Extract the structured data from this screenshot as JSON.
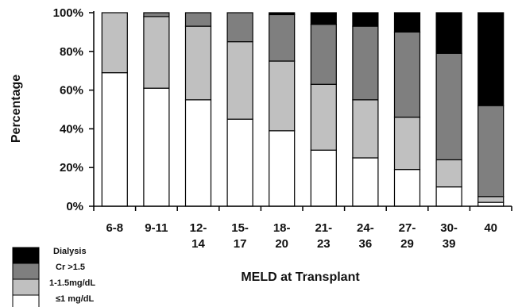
{
  "chart_data": {
    "type": "bar",
    "stacked": true,
    "percent": true,
    "categories": [
      [
        "6-8"
      ],
      [
        "9-11"
      ],
      [
        "12-",
        "14"
      ],
      [
        "15-",
        "17"
      ],
      [
        "18-",
        "20"
      ],
      [
        "21-",
        "23"
      ],
      [
        "24-",
        "36"
      ],
      [
        "27-",
        "29"
      ],
      [
        "30-",
        "39"
      ],
      [
        "40"
      ]
    ],
    "series": [
      {
        "name": "≤1 mg/dL",
        "color": "#ffffff",
        "values": [
          69,
          61,
          55,
          45,
          39,
          29,
          25,
          19,
          10,
          2
        ]
      },
      {
        "name": "1-1.5mg/dL",
        "color": "#c0c0c0",
        "values": [
          31,
          37,
          38,
          40,
          36,
          34,
          30,
          27,
          14,
          3
        ]
      },
      {
        "name": "Cr >1.5",
        "color": "#7f7f7f",
        "values": [
          0,
          2,
          7,
          15,
          24,
          31,
          38,
          44,
          55,
          47
        ]
      },
      {
        "name": "Dialysis",
        "color": "#000000",
        "values": [
          0,
          0,
          0,
          0,
          1,
          6,
          7,
          10,
          21,
          48
        ]
      }
    ],
    "ylim": [
      0,
      100
    ],
    "yticks": [
      "0%",
      "20%",
      "40%",
      "60%",
      "80%",
      "100%"
    ],
    "xlabel": "MELD at Transplant",
    "ylabel": "Percentage",
    "legend_position": "bottom-left",
    "legend_order": [
      "Dialysis",
      "Cr >1.5",
      "1-1.5mg/dL",
      "≤1 mg/dL"
    ],
    "grid": false
  }
}
